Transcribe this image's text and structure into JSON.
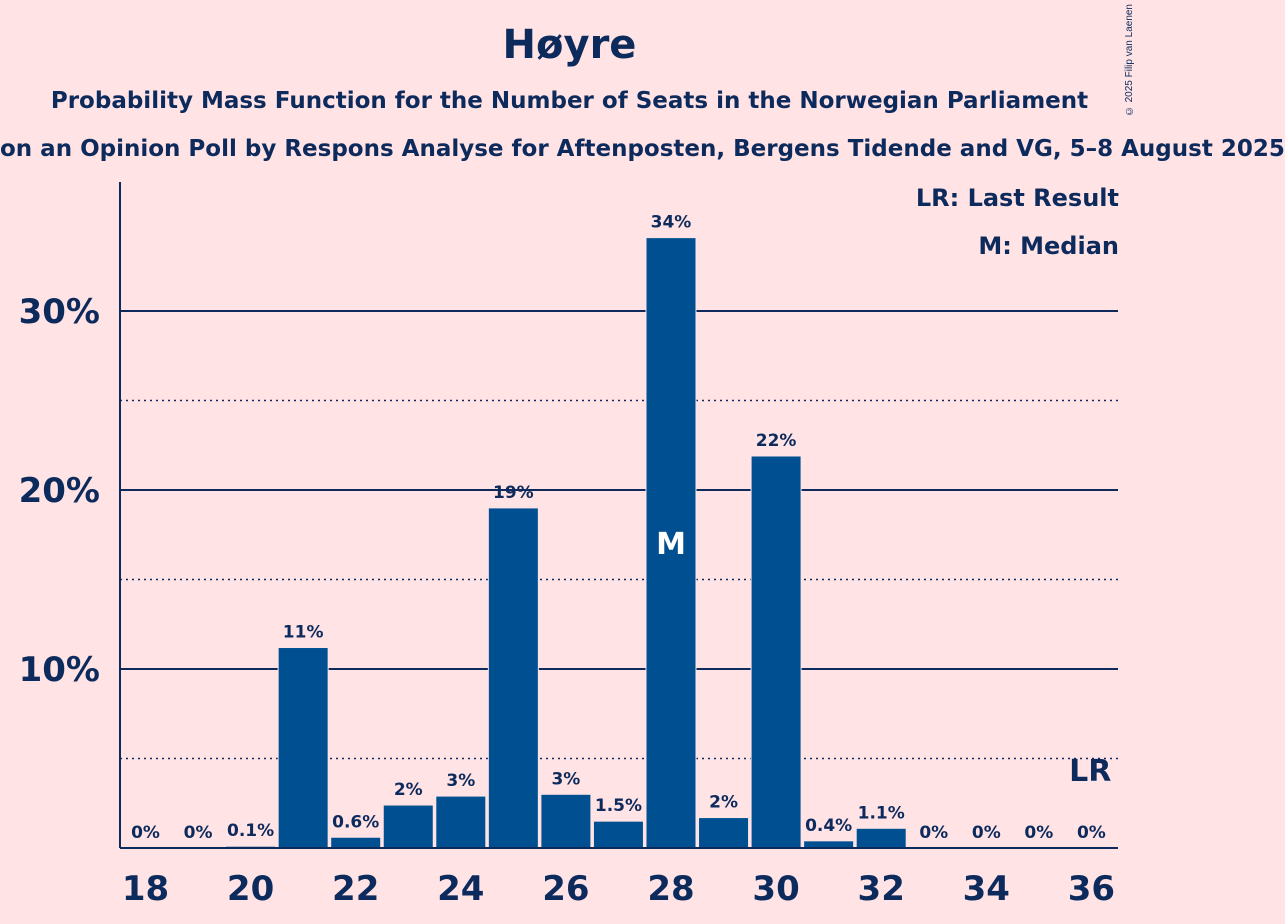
{
  "header": {
    "title": "Høyre",
    "subtitle": "Probability Mass Function for the Number of Seats in the Norwegian Parliament",
    "subtitle2": "on an Opinion Poll by Respons Analyse for Aftenposten, Bergens Tidende and VG, 5–8 August 2025",
    "copyright": "© 2025 Filip van Laenen"
  },
  "legend": {
    "last_result": "LR: Last Result",
    "median": "M: Median"
  },
  "colors": {
    "background": "#FFE3E5",
    "bar": "#005091",
    "text": "#0D2A5C"
  },
  "chart_data": {
    "type": "bar",
    "title": "Høyre",
    "xlabel": "",
    "ylabel": "",
    "categories": [
      18,
      19,
      20,
      21,
      22,
      23,
      24,
      25,
      26,
      27,
      28,
      29,
      30,
      31,
      32,
      33,
      34,
      35,
      36
    ],
    "values": [
      0,
      0,
      0.1,
      11.2,
      0.6,
      2.4,
      2.9,
      19.0,
      3.0,
      1.5,
      34.1,
      1.7,
      21.9,
      0.4,
      1.1,
      0,
      0,
      0,
      0
    ],
    "labels": [
      "0%",
      "0%",
      "0.1%",
      "11%",
      "0.6%",
      "2%",
      "3%",
      "19%",
      "3%",
      "1.5%",
      "34%",
      "2%",
      "22%",
      "0.4%",
      "1.1%",
      "0%",
      "0%",
      "0%",
      "0%"
    ],
    "x_ticks": [
      "18",
      "20",
      "22",
      "24",
      "26",
      "28",
      "30",
      "32",
      "34",
      "36"
    ],
    "y_ticks": [
      "10%",
      "20%",
      "30%"
    ],
    "ylim": [
      0,
      37
    ],
    "median_seat": 28,
    "median_marker": "M",
    "last_result_seat": 36,
    "last_result_marker": "LR"
  }
}
